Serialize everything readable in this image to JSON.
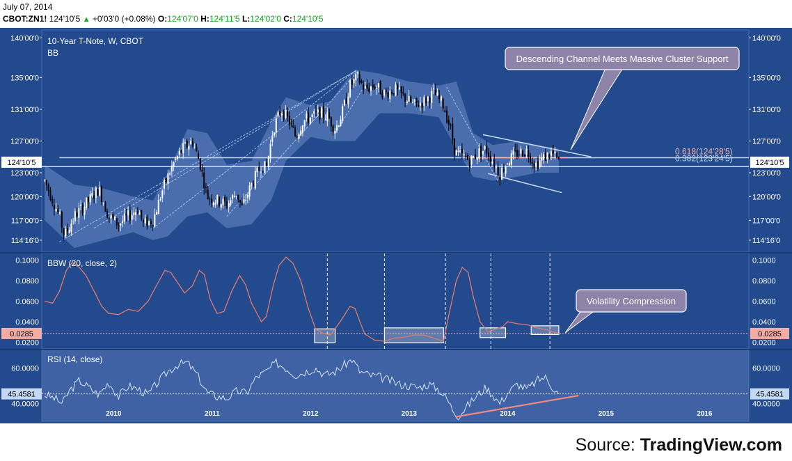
{
  "header": {
    "date": "July 07, 2014",
    "symbol": "CBOT:ZN1!",
    "last": "124'10'5",
    "change": "+0'03'0 (+0.08%)",
    "open_label": "O:",
    "open": "124'07'0",
    "high_label": "H:",
    "high": "124'11'5",
    "low_label": "L:",
    "low": "124'02'0",
    "close_label": "C:",
    "close": "124'10'5"
  },
  "source": {
    "prefix": "Source:",
    "name": "TradingView.com"
  },
  "colors": {
    "panel_bg": "#224a8c",
    "band_fill": "#5f7fbe",
    "candle_up": "#ffffff",
    "candle_down": "#000000",
    "bbw_line": "#e07a70",
    "rsi_line": "#dbe4f4",
    "sr_line": "#aac8f0",
    "trend_pink": "#f08a80",
    "callout_bg": "#8e84aa"
  },
  "chart_data": [
    {
      "type": "candlestick",
      "title": "10-Year T-Note, W, CBOT",
      "indicator": "BB",
      "x_ticks": [
        "2010",
        "2011",
        "2012",
        "2013",
        "2014",
        "2015",
        "2016"
      ],
      "y_ticks": [
        "140'00'0",
        "135'00'0",
        "131'00'0",
        "127'00'0",
        "123'00'0",
        "120'00'0",
        "117'00'0",
        "114'16'0"
      ],
      "ylim": [
        113.0,
        141.0
      ],
      "last_price_label": "124'10'5",
      "last_price": 124.33,
      "fib_labels": [
        "0.618(124'28'5)",
        "0.382(123'24'5)"
      ],
      "fib_levels": [
        124.89,
        123.77
      ],
      "annotation": "Descending Channel Meets Massive Cluster Support",
      "price_path": [
        [
          2009.3,
          122.0
        ],
        [
          2009.45,
          117.5
        ],
        [
          2009.5,
          115.0
        ],
        [
          2009.6,
          117.5
        ],
        [
          2009.75,
          119.5
        ],
        [
          2009.85,
          121.0
        ],
        [
          2009.95,
          117.5
        ],
        [
          2010.05,
          116.5
        ],
        [
          2010.15,
          117.5
        ],
        [
          2010.25,
          118.5
        ],
        [
          2010.3,
          116.5
        ],
        [
          2010.4,
          117.0
        ],
        [
          2010.5,
          121.0
        ],
        [
          2010.6,
          124.0
        ],
        [
          2010.7,
          126.0
        ],
        [
          2010.8,
          127.0
        ],
        [
          2010.88,
          124.0
        ],
        [
          2010.95,
          120.0
        ],
        [
          2011.05,
          119.5
        ],
        [
          2011.15,
          119.0
        ],
        [
          2011.25,
          120.5
        ],
        [
          2011.3,
          118.5
        ],
        [
          2011.4,
          121.5
        ],
        [
          2011.5,
          124.0
        ],
        [
          2011.55,
          123.5
        ],
        [
          2011.62,
          128.5
        ],
        [
          2011.7,
          131.0
        ],
        [
          2011.78,
          129.5
        ],
        [
          2011.85,
          127.5
        ],
        [
          2011.92,
          129.5
        ],
        [
          2012.0,
          130.0
        ],
        [
          2012.1,
          130.5
        ],
        [
          2012.18,
          130.0
        ],
        [
          2012.25,
          128.5
        ],
        [
          2012.32,
          130.5
        ],
        [
          2012.4,
          134.0
        ],
        [
          2012.48,
          135.0
        ],
        [
          2012.55,
          133.5
        ],
        [
          2012.65,
          134.0
        ],
        [
          2012.75,
          133.0
        ],
        [
          2012.85,
          133.5
        ],
        [
          2012.95,
          132.5
        ],
        [
          2013.05,
          131.5
        ],
        [
          2013.15,
          132.0
        ],
        [
          2013.25,
          133.0
        ],
        [
          2013.35,
          131.5
        ],
        [
          2013.42,
          128.5
        ],
        [
          2013.47,
          125.5
        ],
        [
          2013.55,
          125.0
        ],
        [
          2013.62,
          124.5
        ],
        [
          2013.7,
          125.5
        ],
        [
          2013.78,
          126.0
        ],
        [
          2013.85,
          124.5
        ],
        [
          2013.92,
          122.8
        ],
        [
          2014.0,
          124.5
        ],
        [
          2014.1,
          125.5
        ],
        [
          2014.2,
          125.8
        ],
        [
          2014.28,
          124.0
        ],
        [
          2014.38,
          125.0
        ],
        [
          2014.45,
          125.5
        ],
        [
          2014.52,
          124.3
        ]
      ],
      "band_upper": [
        [
          2009.3,
          124.0
        ],
        [
          2009.6,
          121.5
        ],
        [
          2009.9,
          121.0
        ],
        [
          2010.2,
          120.0
        ],
        [
          2010.4,
          119.5
        ],
        [
          2010.55,
          123.0
        ],
        [
          2010.75,
          128.5
        ],
        [
          2010.95,
          128.0
        ],
        [
          2011.15,
          124.0
        ],
        [
          2011.4,
          124.5
        ],
        [
          2011.6,
          129.5
        ],
        [
          2011.75,
          132.5
        ],
        [
          2012.0,
          131.5
        ],
        [
          2012.2,
          132.0
        ],
        [
          2012.45,
          136.0
        ],
        [
          2012.7,
          135.5
        ],
        [
          2013.0,
          134.5
        ],
        [
          2013.3,
          134.0
        ],
        [
          2013.48,
          134.5
        ],
        [
          2013.65,
          128.0
        ],
        [
          2013.85,
          126.5
        ],
        [
          2014.1,
          127.0
        ],
        [
          2014.3,
          126.5
        ],
        [
          2014.52,
          126.0
        ]
      ],
      "band_lower": [
        [
          2009.3,
          117.0
        ],
        [
          2009.6,
          113.5
        ],
        [
          2009.9,
          114.5
        ],
        [
          2010.2,
          115.5
        ],
        [
          2010.4,
          114.5
        ],
        [
          2010.55,
          115.0
        ],
        [
          2010.75,
          117.5
        ],
        [
          2010.95,
          118.0
        ],
        [
          2011.15,
          116.0
        ],
        [
          2011.4,
          116.5
        ],
        [
          2011.6,
          119.5
        ],
        [
          2011.75,
          124.5
        ],
        [
          2012.0,
          127.5
        ],
        [
          2012.2,
          127.0
        ],
        [
          2012.45,
          127.0
        ],
        [
          2012.7,
          130.5
        ],
        [
          2013.0,
          130.5
        ],
        [
          2013.3,
          130.0
        ],
        [
          2013.48,
          126.0
        ],
        [
          2013.65,
          122.5
        ],
        [
          2013.85,
          122.0
        ],
        [
          2014.1,
          122.5
        ],
        [
          2014.3,
          123.0
        ],
        [
          2014.52,
          123.0
        ]
      ]
    },
    {
      "type": "line",
      "title": "BBW (20, close, 2)",
      "y_ticks": [
        "0.1000",
        "0.0800",
        "0.0600",
        "0.0400",
        "0.0200"
      ],
      "ylim": [
        0.0135,
        0.1065
      ],
      "last_value_label": "0.0285",
      "last_value": 0.0285,
      "annotation": "Volatility Compression",
      "path": [
        [
          2009.3,
          0.06
        ],
        [
          2009.38,
          0.058
        ],
        [
          2009.45,
          0.07
        ],
        [
          2009.52,
          0.09
        ],
        [
          2009.58,
          0.098
        ],
        [
          2009.65,
          0.093
        ],
        [
          2009.72,
          0.085
        ],
        [
          2009.8,
          0.07
        ],
        [
          2009.88,
          0.055
        ],
        [
          2009.95,
          0.048
        ],
        [
          2010.05,
          0.047
        ],
        [
          2010.15,
          0.052
        ],
        [
          2010.25,
          0.05
        ],
        [
          2010.35,
          0.06
        ],
        [
          2010.45,
          0.078
        ],
        [
          2010.52,
          0.09
        ],
        [
          2010.58,
          0.088
        ],
        [
          2010.65,
          0.078
        ],
        [
          2010.72,
          0.068
        ],
        [
          2010.8,
          0.075
        ],
        [
          2010.87,
          0.09
        ],
        [
          2010.92,
          0.086
        ],
        [
          2010.98,
          0.062
        ],
        [
          2011.05,
          0.048
        ],
        [
          2011.12,
          0.05
        ],
        [
          2011.2,
          0.07
        ],
        [
          2011.28,
          0.085
        ],
        [
          2011.34,
          0.076
        ],
        [
          2011.4,
          0.058
        ],
        [
          2011.5,
          0.04
        ],
        [
          2011.55,
          0.045
        ],
        [
          2011.62,
          0.075
        ],
        [
          2011.68,
          0.095
        ],
        [
          2011.75,
          0.103
        ],
        [
          2011.82,
          0.097
        ],
        [
          2011.9,
          0.08
        ],
        [
          2011.97,
          0.055
        ],
        [
          2012.05,
          0.033
        ],
        [
          2012.12,
          0.029
        ],
        [
          2012.2,
          0.027
        ],
        [
          2012.3,
          0.04
        ],
        [
          2012.4,
          0.055
        ],
        [
          2012.45,
          0.053
        ],
        [
          2012.5,
          0.04
        ],
        [
          2012.55,
          0.028
        ],
        [
          2012.65,
          0.022
        ],
        [
          2012.75,
          0.021
        ],
        [
          2012.85,
          0.024
        ],
        [
          2012.95,
          0.025
        ],
        [
          2013.05,
          0.027
        ],
        [
          2013.15,
          0.027
        ],
        [
          2013.25,
          0.024
        ],
        [
          2013.35,
          0.021
        ],
        [
          2013.4,
          0.045
        ],
        [
          2013.48,
          0.08
        ],
        [
          2013.54,
          0.093
        ],
        [
          2013.6,
          0.088
        ],
        [
          2013.65,
          0.065
        ],
        [
          2013.72,
          0.04
        ],
        [
          2013.8,
          0.03
        ],
        [
          2013.88,
          0.033
        ],
        [
          2013.95,
          0.035
        ],
        [
          2014.0,
          0.04
        ],
        [
          2014.1,
          0.038
        ],
        [
          2014.2,
          0.037
        ],
        [
          2014.3,
          0.034
        ],
        [
          2014.4,
          0.032
        ],
        [
          2014.52,
          0.0285
        ]
      ],
      "highlight_ranges": [
        [
          2012.04,
          2012.25,
          0.0195,
          0.033
        ],
        [
          2012.75,
          2013.35,
          0.0195,
          0.034
        ],
        [
          2013.72,
          2013.98,
          0.0245,
          0.034
        ],
        [
          2014.24,
          2014.52,
          0.0275,
          0.036
        ]
      ],
      "vertical_markers": [
        2012.17,
        2012.75,
        2013.37,
        2013.83,
        2014.43
      ]
    },
    {
      "type": "line",
      "title": "RSI (14, close)",
      "y_ticks": [
        "60.0000",
        "40.0000"
      ],
      "ylim": [
        30.0,
        70.0
      ],
      "last_value_label": "45.4581",
      "last_value": 45.4581,
      "path": [
        [
          2009.3,
          45.0
        ],
        [
          2009.4,
          43.0
        ],
        [
          2009.48,
          40.0
        ],
        [
          2009.55,
          47.0
        ],
        [
          2009.65,
          53.0
        ],
        [
          2009.75,
          49.0
        ],
        [
          2009.85,
          45.0
        ],
        [
          2009.95,
          52.0
        ],
        [
          2010.05,
          44.0
        ],
        [
          2010.15,
          50.0
        ],
        [
          2010.25,
          48.0
        ],
        [
          2010.35,
          45.0
        ],
        [
          2010.45,
          52.0
        ],
        [
          2010.55,
          58.0
        ],
        [
          2010.65,
          62.0
        ],
        [
          2010.75,
          63.0
        ],
        [
          2010.85,
          56.0
        ],
        [
          2010.95,
          46.0
        ],
        [
          2011.05,
          44.0
        ],
        [
          2011.15,
          43.0
        ],
        [
          2011.25,
          47.0
        ],
        [
          2011.35,
          46.0
        ],
        [
          2011.45,
          55.0
        ],
        [
          2011.55,
          58.0
        ],
        [
          2011.65,
          63.0
        ],
        [
          2011.75,
          60.0
        ],
        [
          2011.85,
          56.0
        ],
        [
          2011.95,
          58.0
        ],
        [
          2012.05,
          60.0
        ],
        [
          2012.15,
          56.0
        ],
        [
          2012.25,
          58.0
        ],
        [
          2012.35,
          62.0
        ],
        [
          2012.42,
          65.0
        ],
        [
          2012.5,
          58.0
        ],
        [
          2012.6,
          56.0
        ],
        [
          2012.7,
          55.0
        ],
        [
          2012.8,
          53.0
        ],
        [
          2012.9,
          51.0
        ],
        [
          2013.0,
          50.0
        ],
        [
          2013.1,
          49.0
        ],
        [
          2013.2,
          51.0
        ],
        [
          2013.3,
          48.0
        ],
        [
          2013.38,
          43.0
        ],
        [
          2013.45,
          36.0
        ],
        [
          2013.5,
          33.0
        ],
        [
          2013.58,
          38.0
        ],
        [
          2013.68,
          44.0
        ],
        [
          2013.78,
          49.0
        ],
        [
          2013.85,
          45.0
        ],
        [
          2013.92,
          40.0
        ],
        [
          2014.0,
          46.0
        ],
        [
          2014.1,
          51.0
        ],
        [
          2014.2,
          48.0
        ],
        [
          2014.3,
          53.0
        ],
        [
          2014.38,
          55.0
        ],
        [
          2014.46,
          49.0
        ],
        [
          2014.52,
          45.46
        ]
      ]
    }
  ]
}
